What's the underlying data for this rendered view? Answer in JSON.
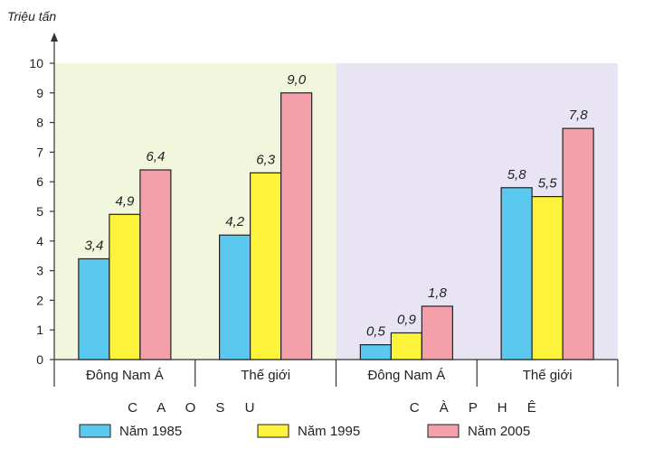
{
  "chart_data": {
    "type": "bar",
    "y_unit_label": "Triệu tấn",
    "ylim": [
      0,
      10
    ],
    "y_ticks": [
      "0",
      "1",
      "2",
      "3",
      "4",
      "5",
      "6",
      "7",
      "8",
      "9",
      "10"
    ],
    "groups": [
      {
        "name": "C A O  S U",
        "background": "#f1f6dc",
        "categories": [
          {
            "label": "Đông Nam Á",
            "values": [
              3.4,
              4.9,
              6.4
            ],
            "value_labels": [
              "3,4",
              "4,9",
              "6,4"
            ]
          },
          {
            "label": "Thế giới",
            "values": [
              4.2,
              6.3,
              9.0
            ],
            "value_labels": [
              "4,2",
              "6,3",
              "9,0"
            ]
          }
        ]
      },
      {
        "name": "C À  P H Ê",
        "background": "#e9e4f3",
        "categories": [
          {
            "label": "Đông Nam Á",
            "values": [
              0.5,
              0.9,
              1.8
            ],
            "value_labels": [
              "0,5",
              "0,9",
              "1,8"
            ]
          },
          {
            "label": "Thế giới",
            "values": [
              5.8,
              5.5,
              7.8
            ],
            "value_labels": [
              "5,8",
              "5,5",
              "7,8"
            ]
          }
        ]
      }
    ],
    "series": [
      {
        "name": "Năm 1985",
        "color": "#5bc8ef"
      },
      {
        "name": "Năm 1995",
        "color": "#fdf33a"
      },
      {
        "name": "Năm 2005",
        "color": "#f4a0ab"
      }
    ]
  }
}
